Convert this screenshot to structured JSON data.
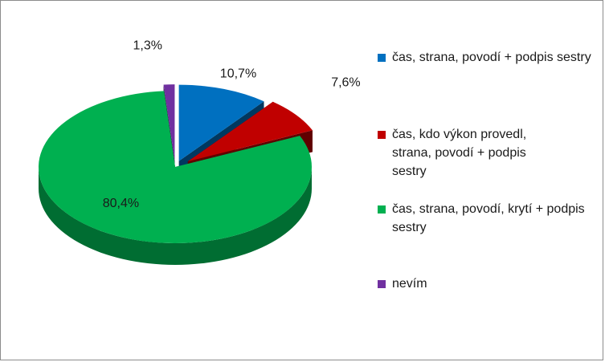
{
  "chart_data": {
    "type": "pie",
    "style": "3d-exploded",
    "series": [
      {
        "label": "čas, strana, povodí + podpis sestry",
        "value": 10.7,
        "value_label": "10,7%",
        "color": "#0070c0"
      },
      {
        "label": "čas, kdo výkon provedl, strana, povodí + podpis sestry",
        "value": 7.6,
        "value_label": "7,6%",
        "color": "#c00000"
      },
      {
        "label": "čas, strana, povodí, krytí + podpis sestry",
        "value": 80.4,
        "value_label": "80,4%",
        "color": "#00b050"
      },
      {
        "label": "nevím",
        "value": 1.3,
        "value_label": "1,3%",
        "color": "#7030a0"
      }
    ],
    "legend": "right"
  }
}
